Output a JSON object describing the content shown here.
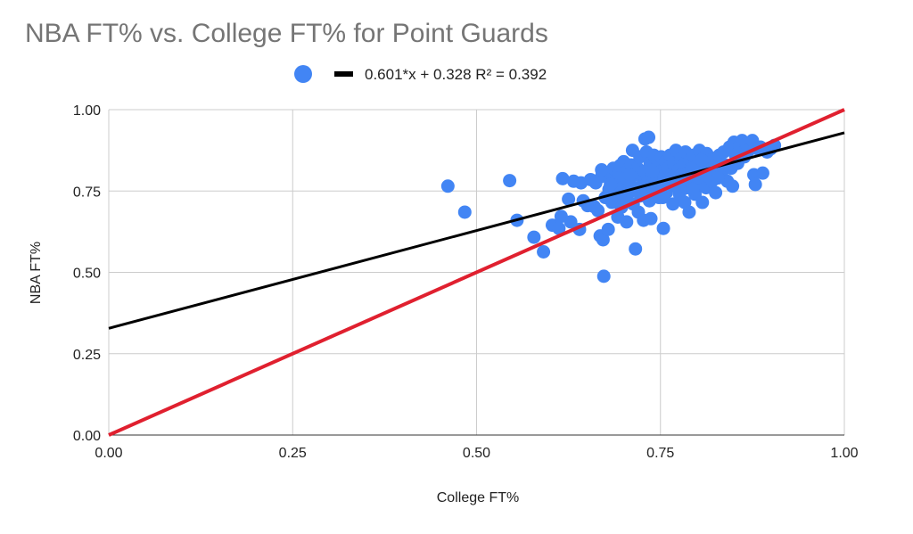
{
  "chart_data": {
    "type": "scatter",
    "title": "NBA FT% vs. College FT% for Point Guards",
    "xlabel": "College FT%",
    "ylabel": "NBA FT%",
    "xlim": [
      0,
      1
    ],
    "ylim": [
      0,
      1
    ],
    "x_ticks": [
      "0.00",
      "0.25",
      "0.50",
      "0.75",
      "1.00"
    ],
    "y_ticks": [
      "0.00",
      "0.25",
      "0.50",
      "0.75",
      "1.00"
    ],
    "grid": true,
    "legend": {
      "position": "top",
      "trendline_label": "0.601*x + 0.328 R² = 0.392"
    },
    "colors": {
      "points": "#4285f4",
      "trendline": "#000000",
      "reference_line": "#e0202f",
      "title": "#757575",
      "grid": "#cccccc"
    },
    "trendline": {
      "slope": 0.601,
      "intercept": 0.328,
      "r2": 0.392
    },
    "reference_line": {
      "slope": 1,
      "intercept": 0
    },
    "points": [
      [
        0.461,
        0.765
      ],
      [
        0.484,
        0.685
      ],
      [
        0.545,
        0.782
      ],
      [
        0.555,
        0.66
      ],
      [
        0.578,
        0.608
      ],
      [
        0.591,
        0.563
      ],
      [
        0.603,
        0.645
      ],
      [
        0.612,
        0.635
      ],
      [
        0.615,
        0.672
      ],
      [
        0.617,
        0.788
      ],
      [
        0.625,
        0.725
      ],
      [
        0.628,
        0.655
      ],
      [
        0.632,
        0.78
      ],
      [
        0.64,
        0.632
      ],
      [
        0.642,
        0.775
      ],
      [
        0.645,
        0.72
      ],
      [
        0.651,
        0.705
      ],
      [
        0.655,
        0.785
      ],
      [
        0.66,
        0.702
      ],
      [
        0.662,
        0.775
      ],
      [
        0.665,
        0.69
      ],
      [
        0.668,
        0.612
      ],
      [
        0.67,
        0.795
      ],
      [
        0.672,
        0.6
      ],
      [
        0.673,
        0.488
      ],
      [
        0.675,
        0.73
      ],
      [
        0.677,
        0.8
      ],
      [
        0.679,
        0.632
      ],
      [
        0.68,
        0.755
      ],
      [
        0.683,
        0.81
      ],
      [
        0.684,
        0.715
      ],
      [
        0.686,
        0.82
      ],
      [
        0.688,
        0.74
      ],
      [
        0.69,
        0.785
      ],
      [
        0.692,
        0.67
      ],
      [
        0.693,
        0.805
      ],
      [
        0.695,
        0.828
      ],
      [
        0.697,
        0.7
      ],
      [
        0.698,
        0.76
      ],
      [
        0.7,
        0.84
      ],
      [
        0.701,
        0.72
      ],
      [
        0.703,
        0.79
      ],
      [
        0.704,
        0.655
      ],
      [
        0.706,
        0.815
      ],
      [
        0.707,
        0.745
      ],
      [
        0.709,
        0.77
      ],
      [
        0.71,
        0.83
      ],
      [
        0.712,
        0.875
      ],
      [
        0.713,
        0.71
      ],
      [
        0.715,
        0.8
      ],
      [
        0.716,
        0.572
      ],
      [
        0.718,
        0.76
      ],
      [
        0.719,
        0.82
      ],
      [
        0.72,
        0.685
      ],
      [
        0.722,
        0.855
      ],
      [
        0.723,
        0.735
      ],
      [
        0.725,
        0.795
      ],
      [
        0.727,
        0.66
      ],
      [
        0.728,
        0.81
      ],
      [
        0.729,
        0.91
      ],
      [
        0.73,
        0.75
      ],
      [
        0.731,
        0.87
      ],
      [
        0.733,
        0.78
      ],
      [
        0.734,
        0.915
      ],
      [
        0.735,
        0.72
      ],
      [
        0.736,
        0.835
      ],
      [
        0.737,
        0.665
      ],
      [
        0.738,
        0.8
      ],
      [
        0.74,
        0.76
      ],
      [
        0.741,
        0.86
      ],
      [
        0.742,
        0.74
      ],
      [
        0.744,
        0.82
      ],
      [
        0.745,
        0.785
      ],
      [
        0.747,
        0.84
      ],
      [
        0.748,
        0.73
      ],
      [
        0.75,
        0.81
      ],
      [
        0.751,
        0.855
      ],
      [
        0.752,
        0.77
      ],
      [
        0.754,
        0.635
      ],
      [
        0.755,
        0.795
      ],
      [
        0.757,
        0.84
      ],
      [
        0.758,
        0.745
      ],
      [
        0.76,
        0.82
      ],
      [
        0.762,
        0.78
      ],
      [
        0.763,
        0.86
      ],
      [
        0.765,
        0.8
      ],
      [
        0.767,
        0.71
      ],
      [
        0.768,
        0.835
      ],
      [
        0.77,
        0.765
      ],
      [
        0.771,
        0.875
      ],
      [
        0.773,
        0.79
      ],
      [
        0.775,
        0.815
      ],
      [
        0.776,
        0.74
      ],
      [
        0.778,
        0.85
      ],
      [
        0.78,
        0.78
      ],
      [
        0.781,
        0.83
      ],
      [
        0.783,
        0.715
      ],
      [
        0.784,
        0.87
      ],
      [
        0.786,
        0.76
      ],
      [
        0.787,
        0.805
      ],
      [
        0.789,
        0.685
      ],
      [
        0.79,
        0.845
      ],
      [
        0.792,
        0.775
      ],
      [
        0.793,
        0.82
      ],
      [
        0.795,
        0.86
      ],
      [
        0.797,
        0.74
      ],
      [
        0.798,
        0.8
      ],
      [
        0.8,
        0.83
      ],
      [
        0.801,
        0.77
      ],
      [
        0.803,
        0.875
      ],
      [
        0.805,
        0.79
      ],
      [
        0.807,
        0.715
      ],
      [
        0.808,
        0.85
      ],
      [
        0.81,
        0.81
      ],
      [
        0.812,
        0.76
      ],
      [
        0.813,
        0.865
      ],
      [
        0.815,
        0.795
      ],
      [
        0.817,
        0.835
      ],
      [
        0.82,
        0.78
      ],
      [
        0.822,
        0.85
      ],
      [
        0.825,
        0.745
      ],
      [
        0.827,
        0.82
      ],
      [
        0.83,
        0.86
      ],
      [
        0.833,
        0.8
      ],
      [
        0.836,
        0.87
      ],
      [
        0.838,
        0.83
      ],
      [
        0.841,
        0.78
      ],
      [
        0.844,
        0.885
      ],
      [
        0.846,
        0.82
      ],
      [
        0.848,
        0.765
      ],
      [
        0.85,
        0.9
      ],
      [
        0.852,
        0.86
      ],
      [
        0.855,
        0.835
      ],
      [
        0.858,
        0.89
      ],
      [
        0.861,
        0.905
      ],
      [
        0.864,
        0.855
      ],
      [
        0.867,
        0.895
      ],
      [
        0.87,
        0.875
      ],
      [
        0.875,
        0.905
      ],
      [
        0.877,
        0.8
      ],
      [
        0.879,
        0.77
      ],
      [
        0.882,
        0.88
      ],
      [
        0.886,
        0.885
      ],
      [
        0.889,
        0.805
      ],
      [
        0.895,
        0.87
      ],
      [
        0.9,
        0.88
      ],
      [
        0.905,
        0.89
      ],
      [
        0.67,
        0.815
      ],
      [
        0.682,
        0.77
      ],
      [
        0.696,
        0.745
      ],
      [
        0.708,
        0.8
      ],
      [
        0.724,
        0.765
      ],
      [
        0.739,
        0.81
      ],
      [
        0.753,
        0.73
      ],
      [
        0.766,
        0.79
      ],
      [
        0.779,
        0.8
      ],
      [
        0.794,
        0.755
      ],
      [
        0.806,
        0.845
      ],
      [
        0.818,
        0.815
      ],
      [
        0.828,
        0.79
      ]
    ]
  }
}
